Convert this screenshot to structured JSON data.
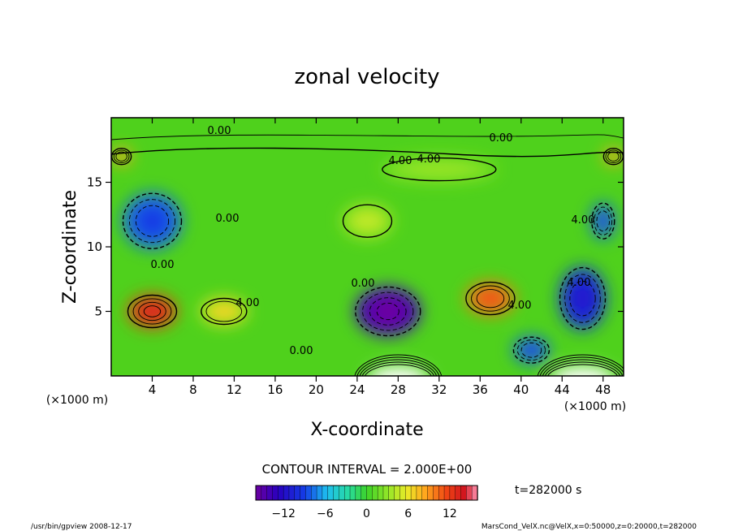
{
  "chart_data": {
    "type": "heatmap",
    "title": "zonal velocity",
    "xlabel": "X-coordinate",
    "ylabel": "Z-coordinate",
    "x_unit": "(×1000 m)",
    "z_unit": "(×1000 m)",
    "xlim": [
      0,
      50
    ],
    "ylim": [
      0,
      20
    ],
    "x_ticks": [
      4,
      8,
      12,
      16,
      20,
      24,
      28,
      32,
      36,
      40,
      44,
      48
    ],
    "y_ticks": [
      5,
      10,
      15
    ],
    "contour_interval_label": "CONTOUR INTERVAL = 2.000E+00",
    "contour_labels": [
      "0.00",
      "4.00",
      "0.00",
      "4.00",
      "4.00",
      "0.00",
      "4.00",
      "0.00",
      "4.00",
      "0.00",
      "4.00",
      "0.00"
    ],
    "time_label": "t=282000 s",
    "colorbar": {
      "range": [
        -16,
        16
      ],
      "ticks": [
        -12,
        -6,
        0,
        6,
        12
      ],
      "tick_labels": [
        "−12",
        "−6",
        "0",
        "6",
        "12"
      ]
    },
    "features": [
      {
        "x": 4,
        "z": 5,
        "value": 12
      },
      {
        "x": 11,
        "z": 5,
        "value": 6
      },
      {
        "x": 4,
        "z": 12,
        "value": -8
      },
      {
        "x": 27,
        "z": 5,
        "value": -14
      },
      {
        "x": 37,
        "z": 6,
        "value": 10
      },
      {
        "x": 46,
        "z": 6,
        "value": -10
      },
      {
        "x": 41,
        "z": 2,
        "value": -8
      },
      {
        "x": 32,
        "z": 16,
        "value": 3
      },
      {
        "x": 25,
        "z": 12,
        "value": 4
      },
      {
        "x": 1,
        "z": 17,
        "value": 8
      },
      {
        "x": 49,
        "z": 17,
        "value": 8
      },
      {
        "x": 48,
        "z": 12,
        "value": -8
      }
    ]
  },
  "footer": {
    "left": "/usr/bin/gpview  2008-12-17",
    "right": "MarsCond_VelX.nc@VelX,x=0:50000,z=0:20000,t=282000"
  }
}
